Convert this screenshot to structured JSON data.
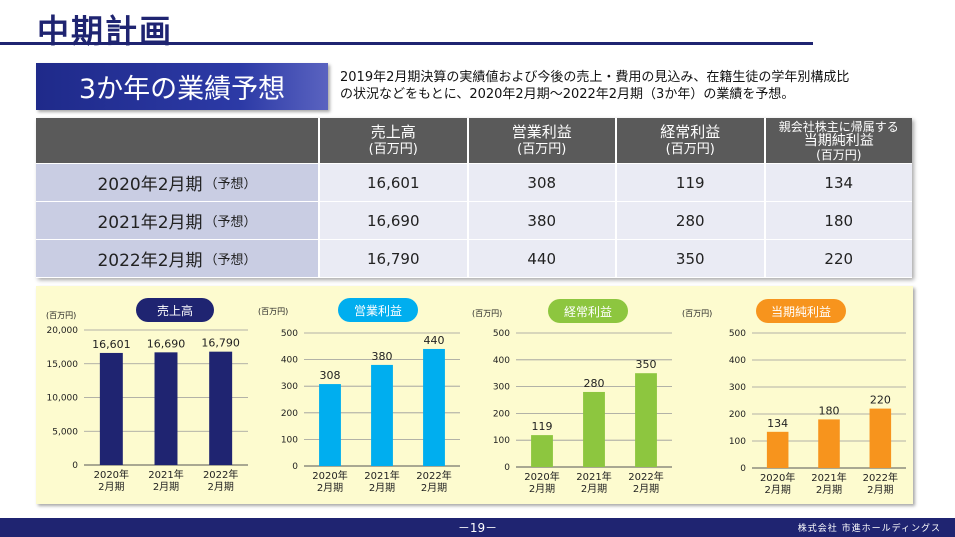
{
  "page_title": "中期計画",
  "section_label": "3か年の業績予想",
  "description_lines": [
    "2019年2月期決算の実績値および今後の売上・費用の見込み、在籍生徒の学年別構成比",
    "の状況などをもとに、2020年2月期〜2022年2月期（3か年）の業績を予想。"
  ],
  "table": {
    "headers": [
      {
        "label": "売上高",
        "unit": "(百万円)"
      },
      {
        "label": "営業利益",
        "unit": "(百万円)"
      },
      {
        "label": "経常利益",
        "unit": "(百万円)"
      },
      {
        "label_small": "親会社株主に帰属する",
        "label": "当期純利益",
        "unit": "(百万円)"
      }
    ],
    "rows": [
      {
        "period": "2020年2月期",
        "note": "（予想）",
        "values": [
          "16,601",
          "308",
          "119",
          "134"
        ]
      },
      {
        "period": "2021年2月期",
        "note": "（予想）",
        "values": [
          "16,690",
          "380",
          "280",
          "180"
        ]
      },
      {
        "period": "2022年2月期",
        "note": "（予想）",
        "values": [
          "16,790",
          "440",
          "350",
          "220"
        ]
      }
    ]
  },
  "chart_data": [
    {
      "type": "bar",
      "title": "売上高",
      "unit": "(百万円)",
      "color": "#1f2471",
      "categories": [
        "2020年\n2月期",
        "2021年\n2月期",
        "2022年\n2月期"
      ],
      "values": [
        16601,
        16690,
        16790
      ],
      "labels": [
        "16,601",
        "16,690",
        "16,790"
      ],
      "ylim": [
        0,
        20000
      ],
      "yticks": [
        "0",
        "5,000",
        "10,000",
        "15,000",
        "20,000"
      ],
      "grid": true
    },
    {
      "type": "bar",
      "title": "営業利益",
      "unit": "(百万円)",
      "color": "#00aeef",
      "categories": [
        "2020年\n2月期",
        "2021年\n2月期",
        "2022年\n2月期"
      ],
      "values": [
        308,
        380,
        440
      ],
      "labels": [
        "308",
        "380",
        "440"
      ],
      "ylim": [
        0,
        500
      ],
      "yticks": [
        "0",
        "100",
        "200",
        "300",
        "400",
        "500"
      ],
      "grid": true
    },
    {
      "type": "bar",
      "title": "経常利益",
      "unit": "(百万円)",
      "color": "#8dc63f",
      "categories": [
        "2020年\n2月期",
        "2021年\n2月期",
        "2022年\n2月期"
      ],
      "values": [
        119,
        280,
        350
      ],
      "labels": [
        "119",
        "280",
        "350"
      ],
      "ylim": [
        0,
        500
      ],
      "yticks": [
        "0",
        "100",
        "200",
        "300",
        "400",
        "500"
      ],
      "grid": true
    },
    {
      "type": "bar",
      "title": "当期純利益",
      "unit": "(百万円)",
      "color": "#f7941d",
      "categories": [
        "2020年\n2月期",
        "2021年\n2月期",
        "2022年\n2月期"
      ],
      "values": [
        134,
        180,
        220
      ],
      "labels": [
        "134",
        "180",
        "220"
      ],
      "ylim": [
        0,
        500
      ],
      "yticks": [
        "0",
        "100",
        "200",
        "300",
        "400",
        "500"
      ],
      "grid": true
    }
  ],
  "footer": {
    "page_number": "－19－",
    "company": "株式会社 市進ホールディングス"
  }
}
